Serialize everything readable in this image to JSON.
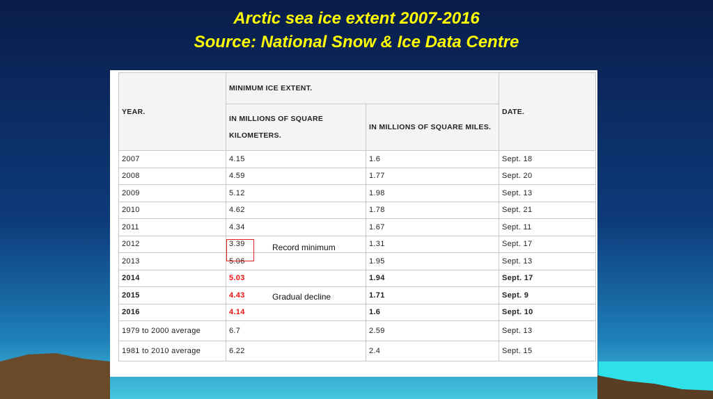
{
  "title": [
    "Arctic sea ice extent 2007-2016",
    "Source: National Snow & Ice Data Centre"
  ],
  "table": {
    "header": {
      "year": "YEAR.",
      "minimum": "MINIMUM ICE EXTENT.",
      "km": "IN MILLIONS OF SQUARE KILOMETERS.",
      "miles": "IN MILLIONS OF SQUARE MILES.",
      "date": "DATE."
    },
    "rows": [
      [
        "2007",
        "4.15",
        "1.6",
        "Sept. 18"
      ],
      [
        "2008",
        "4.59",
        "1.77",
        "Sept. 20"
      ],
      [
        "2009",
        "5.12",
        "1.98",
        "Sept. 13"
      ],
      [
        "2010",
        "4.62",
        "1.78",
        "Sept. 21"
      ],
      [
        "2011",
        "4.34",
        "1.67",
        "Sept. 11"
      ],
      [
        "2012",
        "3.39",
        "1.31",
        "Sept. 17"
      ],
      [
        "2013",
        "5.06",
        "1.95",
        "Sept. 13"
      ],
      [
        "2014",
        "5.03",
        "1.94",
        "Sept. 17"
      ],
      [
        "2015",
        "4.43",
        "1.71",
        "Sept. 9"
      ],
      [
        "2016",
        "4.14",
        "1.6",
        "Sept. 10"
      ],
      [
        "1979 to 2000 average",
        "6.7",
        "2.59",
        "Sept. 13"
      ],
      [
        "1981 to 2010 average",
        "6.22",
        "2.4",
        "Sept. 15"
      ]
    ]
  },
  "annotations": [
    "Record minimum",
    "Gradual decline"
  ]
}
